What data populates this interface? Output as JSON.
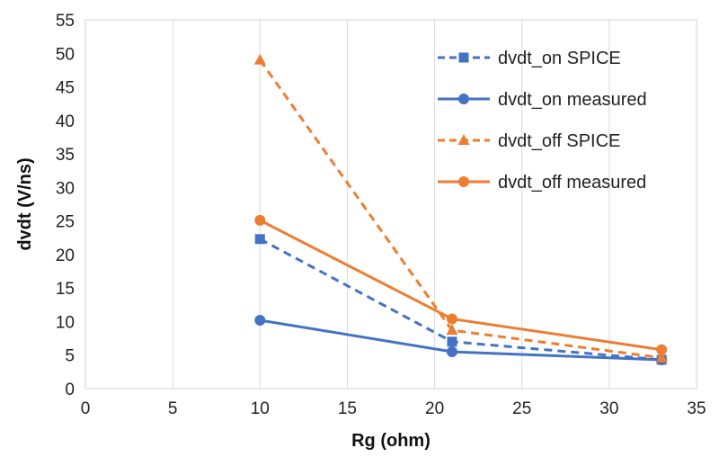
{
  "chart_data": {
    "type": "line",
    "title": "",
    "xlabel": "Rg (ohm)",
    "ylabel": "dvdt (V/ns)",
    "xlim": [
      0,
      35
    ],
    "ylim": [
      0,
      55
    ],
    "xticks": [
      0,
      5,
      10,
      15,
      20,
      25,
      30,
      35
    ],
    "yticks": [
      0,
      5,
      10,
      15,
      20,
      25,
      30,
      35,
      40,
      45,
      50,
      55
    ],
    "grid": "vertical",
    "legend_position": "top-right",
    "series": [
      {
        "name": "dvdt_on SPICE",
        "color": "#4472C4",
        "dash": "dashed",
        "marker": "square",
        "x": [
          10,
          21,
          33
        ],
        "y": [
          22.3,
          7.0,
          4.3
        ]
      },
      {
        "name": "dvdt_on measured",
        "color": "#4472C4",
        "dash": "solid",
        "marker": "circle",
        "x": [
          10,
          21,
          33
        ],
        "y": [
          10.2,
          5.5,
          4.3
        ]
      },
      {
        "name": "dvdt_off SPICE",
        "color": "#ED7D31",
        "dash": "dashed",
        "marker": "triangle",
        "x": [
          10,
          21,
          33
        ],
        "y": [
          49.0,
          8.7,
          4.6
        ]
      },
      {
        "name": "dvdt_off measured",
        "color": "#ED7D31",
        "dash": "solid",
        "marker": "circle",
        "x": [
          10,
          21,
          33
        ],
        "y": [
          25.1,
          10.4,
          5.8
        ]
      }
    ]
  }
}
